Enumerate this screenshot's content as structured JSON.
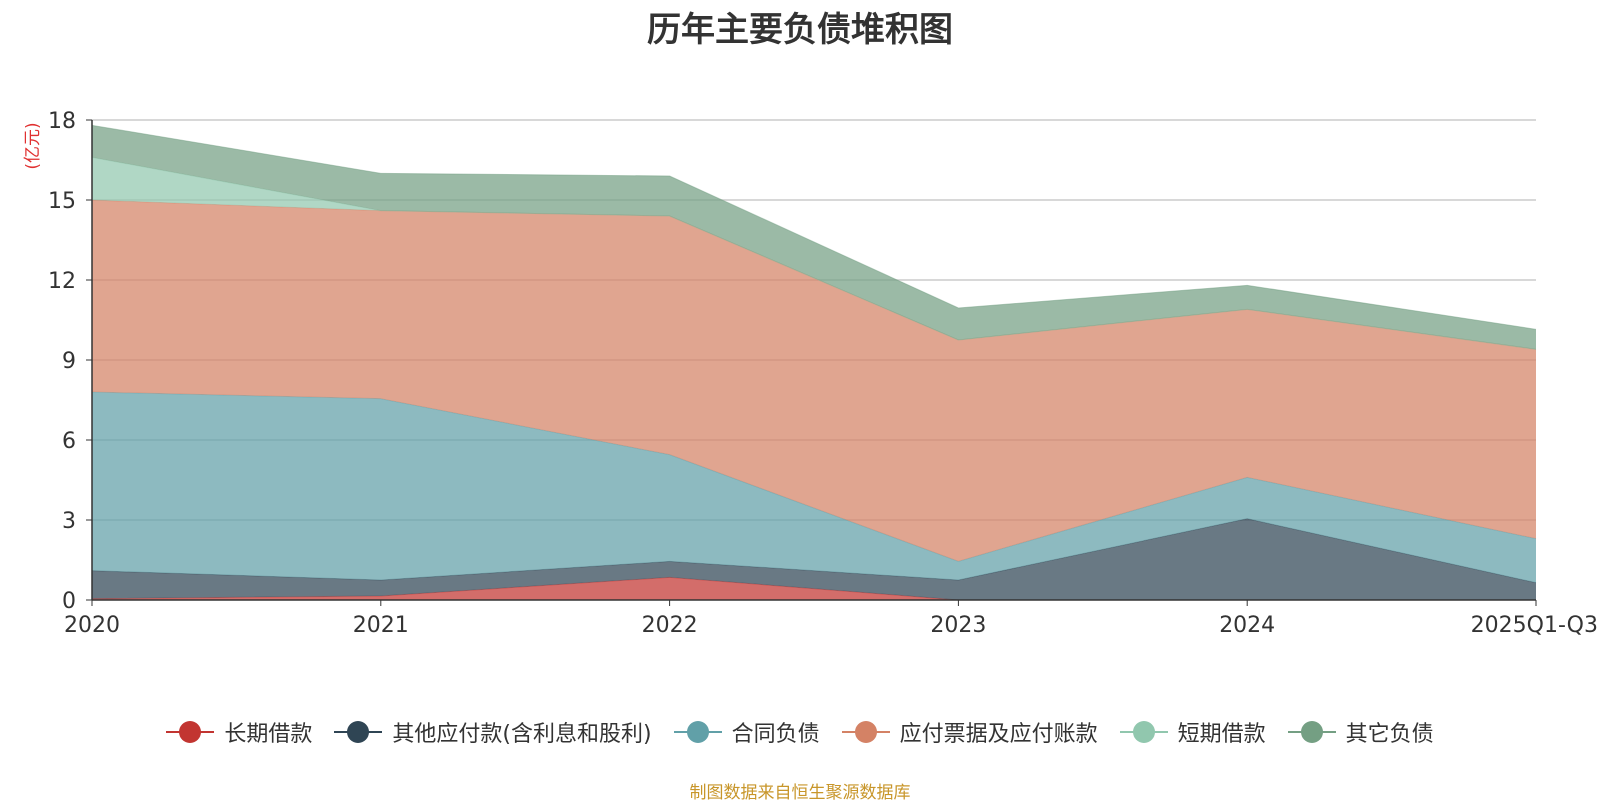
{
  "chart_data": {
    "type": "area",
    "stacked": true,
    "title": "历年主要负债堆积图",
    "ylabel": "(亿元)",
    "xlabel": "",
    "ylim": [
      0,
      18
    ],
    "yticks": [
      0,
      3,
      6,
      9,
      12,
      15,
      18
    ],
    "grid": true,
    "legend_position": "bottom-center",
    "categories": [
      "2020",
      "2021",
      "2022",
      "2023",
      "2024",
      "2025Q1-Q3"
    ],
    "series": [
      {
        "name": "长期借款",
        "color": "#c23531",
        "values": [
          0.05,
          0.15,
          0.85,
          0.0,
          0.0,
          0.0
        ]
      },
      {
        "name": "其他应付款(含利息和股利)",
        "color": "#2f4554",
        "values": [
          1.05,
          0.6,
          0.6,
          0.75,
          3.05,
          0.65
        ]
      },
      {
        "name": "合同负债",
        "color": "#61a0a8",
        "values": [
          6.7,
          6.8,
          4.0,
          0.7,
          1.55,
          1.65
        ]
      },
      {
        "name": "应付票据及应付账款",
        "color": "#d48265",
        "values": [
          7.2,
          7.05,
          8.95,
          8.3,
          6.3,
          7.1
        ]
      },
      {
        "name": "短期借款",
        "color": "#91c7ae",
        "values": [
          1.6,
          0.0,
          0.0,
          0.0,
          0.0,
          0.0
        ]
      },
      {
        "name": "其它负债",
        "color": "#749f83",
        "values": [
          1.2,
          1.4,
          1.5,
          1.2,
          0.9,
          0.75
        ]
      }
    ],
    "source_note": "制图数据来自恒生聚源数据库"
  }
}
